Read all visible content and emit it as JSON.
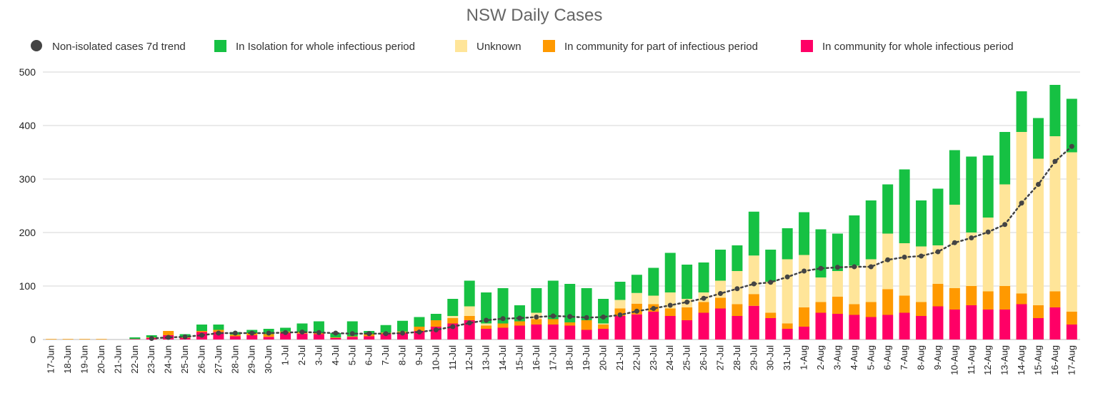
{
  "chart_data": {
    "type": "bar",
    "stacked": true,
    "title": "NSW Daily Cases",
    "xlabel": "",
    "ylabel": "",
    "ylim": [
      0,
      500
    ],
    "yticks": [
      0,
      100,
      200,
      300,
      400,
      500
    ],
    "grid": true,
    "legend_position": "top",
    "categories": [
      "17-Jun",
      "18-Jun",
      "19-Jun",
      "20-Jun",
      "21-Jun",
      "22-Jun",
      "23-Jun",
      "24-Jun",
      "25-Jun",
      "26-Jun",
      "27-Jun",
      "28-Jun",
      "29-Jun",
      "30-Jun",
      "1-Jul",
      "2-Jul",
      "3-Jul",
      "4-Jul",
      "5-Jul",
      "6-Jul",
      "7-Jul",
      "8-Jul",
      "9-Jul",
      "10-Jul",
      "11-Jul",
      "12-Jul",
      "13-Jul",
      "14-Jul",
      "15-Jul",
      "16-Jul",
      "17-Jul",
      "18-Jul",
      "19-Jul",
      "20-Jul",
      "21-Jul",
      "22-Jul",
      "23-Jul",
      "24-Jul",
      "25-Jul",
      "26-Jul",
      "27-Jul",
      "28-Jul",
      "29-Jul",
      "30-Jul",
      "31-Jul",
      "1-Aug",
      "2-Aug",
      "3-Aug",
      "4-Aug",
      "5-Aug",
      "6-Aug",
      "7-Aug",
      "8-Aug",
      "9-Aug",
      "10-Aug",
      "11-Aug",
      "12-Aug",
      "13-Aug",
      "14-Aug",
      "15-Aug",
      "16-Aug",
      "17-Aug"
    ],
    "series": [
      {
        "name": "In community for whole infectious period",
        "color": "#ff0066",
        "values": [
          0,
          0,
          0,
          0,
          0,
          1,
          3,
          8,
          3,
          14,
          14,
          6,
          8,
          5,
          12,
          11,
          10,
          3,
          5,
          6,
          10,
          12,
          16,
          24,
          30,
          36,
          20,
          22,
          26,
          28,
          28,
          26,
          18,
          20,
          44,
          47,
          52,
          44,
          36,
          50,
          58,
          44,
          63,
          40,
          20,
          24,
          50,
          48,
          46,
          42,
          46,
          50,
          44,
          62,
          56,
          64,
          56,
          56,
          66,
          40,
          60,
          28
        ]
      },
      {
        "name": "In community for part of infectious period",
        "color": "#ff9900",
        "values": [
          1,
          1,
          1,
          1,
          0,
          0,
          1,
          8,
          1,
          2,
          4,
          3,
          4,
          5,
          3,
          3,
          2,
          1,
          1,
          4,
          3,
          3,
          8,
          12,
          10,
          8,
          6,
          8,
          8,
          10,
          10,
          6,
          18,
          8,
          14,
          20,
          14,
          14,
          24,
          20,
          20,
          22,
          22,
          10,
          10,
          36,
          20,
          32,
          20,
          28,
          48,
          32,
          26,
          42,
          40,
          36,
          34,
          44,
          20,
          24,
          30,
          24
        ]
      },
      {
        "name": "Unknown",
        "color": "#ffe599",
        "values": [
          0,
          0,
          0,
          0,
          0,
          0,
          0,
          0,
          0,
          0,
          0,
          0,
          0,
          0,
          0,
          0,
          0,
          0,
          0,
          0,
          0,
          0,
          0,
          0,
          4,
          18,
          4,
          0,
          0,
          12,
          0,
          0,
          0,
          2,
          16,
          20,
          16,
          30,
          16,
          18,
          32,
          62,
          72,
          58,
          120,
          98,
          46,
          48,
          72,
          80,
          104,
          98,
          104,
          72,
          156,
          100,
          138,
          190,
          302,
          274,
          290,
          298
        ]
      },
      {
        "name": "In Isolation for whole infectious period",
        "color": "#16c143",
        "values": [
          0,
          0,
          0,
          0,
          0,
          3,
          4,
          0,
          6,
          12,
          10,
          5,
          6,
          10,
          7,
          16,
          22,
          8,
          28,
          6,
          14,
          20,
          18,
          12,
          32,
          48,
          58,
          66,
          30,
          46,
          72,
          72,
          60,
          46,
          34,
          34,
          52,
          74,
          64,
          56,
          58,
          48,
          82,
          60,
          58,
          80,
          90,
          70,
          94,
          110,
          92,
          138,
          86,
          106,
          102,
          142,
          116,
          98,
          76,
          76,
          96,
          100
        ]
      }
    ],
    "trend": {
      "name": "Non-isolated cases 7d trend",
      "color": "#444444",
      "values": [
        null,
        null,
        null,
        null,
        null,
        null,
        2,
        4,
        5,
        8,
        12,
        12,
        12,
        12,
        13,
        14,
        13,
        12,
        11,
        11,
        11,
        12,
        14,
        18,
        24,
        31,
        36,
        39,
        40,
        42,
        44,
        43,
        41,
        42,
        46,
        53,
        58,
        64,
        70,
        77,
        86,
        95,
        104,
        107,
        117,
        128,
        133,
        135,
        136,
        136,
        149,
        154,
        156,
        164,
        181,
        190,
        201,
        215,
        255,
        290,
        333,
        361
      ]
    }
  }
}
